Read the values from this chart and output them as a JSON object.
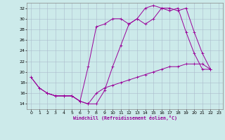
{
  "title": "",
  "xlabel": "Windchill (Refroidissement éolien,°C)",
  "background_color": "#cceaea",
  "line_color": "#990099",
  "grid_color": "#aabbcc",
  "xlim": [
    -0.5,
    23.5
  ],
  "ylim": [
    13,
    33
  ],
  "yticks": [
    14,
    16,
    18,
    20,
    22,
    24,
    26,
    28,
    30,
    32
  ],
  "xticks": [
    0,
    1,
    2,
    3,
    4,
    5,
    6,
    7,
    8,
    9,
    10,
    11,
    12,
    13,
    14,
    15,
    16,
    17,
    18,
    19,
    20,
    21,
    22,
    23
  ],
  "series1_x": [
    0,
    1,
    2,
    3,
    4,
    5,
    6,
    7,
    8,
    9,
    10,
    11,
    12,
    13,
    14,
    15,
    16,
    17,
    18,
    19,
    20,
    21,
    22
  ],
  "series1_y": [
    19,
    17,
    16,
    15.5,
    15.5,
    15.5,
    14.5,
    14,
    14,
    16.5,
    21,
    25,
    29,
    30,
    29,
    30,
    32,
    32,
    31.5,
    32,
    27.5,
    23.5,
    20.5
  ],
  "series2_x": [
    0,
    1,
    2,
    3,
    4,
    5,
    6,
    7,
    8,
    9,
    10,
    11,
    12,
    13,
    14,
    15,
    16,
    17,
    18,
    19,
    20,
    21,
    22
  ],
  "series2_y": [
    19,
    17,
    16,
    15.5,
    15.5,
    15.5,
    14.5,
    21,
    28.5,
    29,
    30,
    30,
    29,
    30,
    32,
    32.5,
    32,
    31.5,
    32,
    27.5,
    23.5,
    20.5,
    20.5
  ],
  "series3_x": [
    2,
    3,
    4,
    5,
    6,
    7,
    8,
    9,
    10,
    11,
    12,
    13,
    14,
    15,
    16,
    17,
    18,
    19,
    20,
    21,
    22
  ],
  "series3_y": [
    16,
    15.5,
    15.5,
    15.5,
    14.5,
    14,
    16,
    17,
    17.5,
    18,
    18.5,
    19,
    19.5,
    20,
    20.5,
    21,
    21,
    21.5,
    21.5,
    21.5,
    20.5
  ]
}
